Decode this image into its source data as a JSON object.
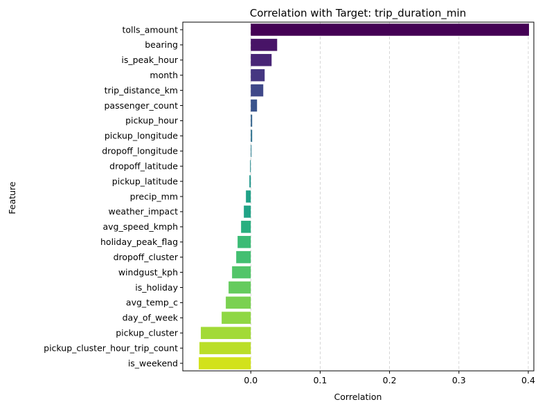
{
  "chart_data": {
    "type": "bar",
    "orientation": "horizontal",
    "title": "Correlation with Target: trip_duration_min",
    "xlabel": "Correlation",
    "ylabel": "Feature",
    "xlim": [
      -0.098,
      0.408
    ],
    "xticks": [
      0.0,
      0.1,
      0.2,
      0.3,
      0.4
    ],
    "xtick_labels": [
      "0.0",
      "0.1",
      "0.2",
      "0.3",
      "0.4"
    ],
    "grid": "x-axis dashed",
    "palette": "viridis",
    "categories": [
      "tolls_amount",
      "bearing",
      "is_peak_hour",
      "month",
      "trip_distance_km",
      "passenger_count",
      "pickup_hour",
      "pickup_longitude",
      "dropoff_longitude",
      "dropoff_latitude",
      "pickup_latitude",
      "precip_mm",
      "weather_impact",
      "avg_speed_kmph",
      "holiday_peak_flag",
      "dropoff_cluster",
      "windgust_kph",
      "is_holiday",
      "avg_temp_c",
      "day_of_week",
      "pickup_cluster",
      "pickup_cluster_hour_trip_count",
      "is_weekend"
    ],
    "values": [
      0.401,
      0.038,
      0.03,
      0.02,
      0.018,
      0.009,
      0.002,
      0.002,
      0.001,
      -0.001,
      -0.002,
      -0.007,
      -0.01,
      -0.014,
      -0.019,
      -0.021,
      -0.027,
      -0.032,
      -0.036,
      -0.042,
      -0.072,
      -0.074,
      -0.075
    ],
    "colors": [
      "#440154",
      "#481467",
      "#482576",
      "#453781",
      "#3f4889",
      "#3a548c",
      "#33638d",
      "#2d708e",
      "#287c8e",
      "#238a8d",
      "#1f968b",
      "#1fa187",
      "#20a386",
      "#29af7f",
      "#3bbb75",
      "#43bf71",
      "#52c569",
      "#65cb5e",
      "#7ad151",
      "#8fd744",
      "#a2da37",
      "#bade28",
      "#d2e21b"
    ]
  }
}
